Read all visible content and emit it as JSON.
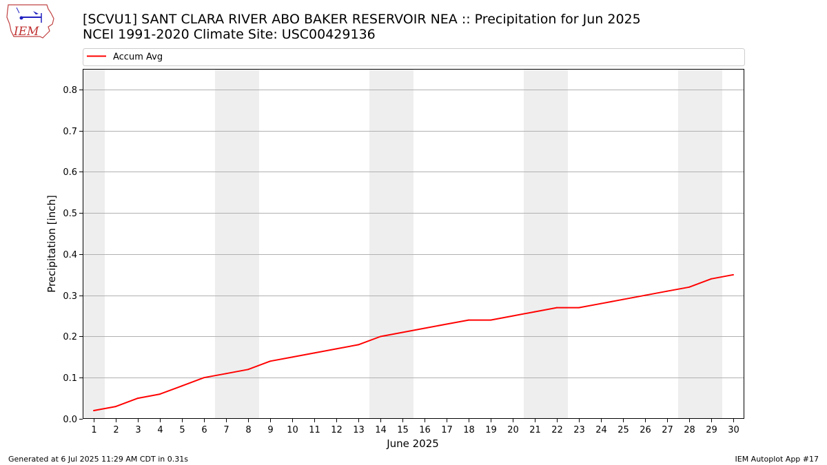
{
  "title_line1": "[SCVU1] SANT CLARA RIVER ABO BAKER RESERVOIR NEA :: Precipitation for Jun 2025",
  "title_line2": "NCEI 1991-2020 Climate Site: USC00429136",
  "logo_text": "IEM",
  "footer_left": "Generated at 6 Jul 2025 11:29 AM CDT in 0.31s",
  "footer_right": "IEM Autoplot App #17",
  "colors": {
    "line": "#ff0000",
    "weekend_band": "#eeeeee",
    "grid": "#b0b0b0"
  },
  "chart_data": {
    "type": "line",
    "xlabel": "June 2025",
    "ylabel": "Precipitation [inch]",
    "xlim": [
      0.5,
      30.5
    ],
    "ylim": [
      0,
      0.85
    ],
    "x_ticks": [
      1,
      2,
      3,
      4,
      5,
      6,
      7,
      8,
      9,
      10,
      11,
      12,
      13,
      14,
      15,
      16,
      17,
      18,
      19,
      20,
      21,
      22,
      23,
      24,
      25,
      26,
      27,
      28,
      29,
      30
    ],
    "y_ticks": [
      "0.0",
      "0.1",
      "0.2",
      "0.3",
      "0.4",
      "0.5",
      "0.6",
      "0.7",
      "0.8"
    ],
    "grid": "horizontal",
    "legend_placement": "top",
    "weekend_days": [
      1,
      7,
      8,
      14,
      15,
      21,
      22,
      28,
      29
    ],
    "series": [
      {
        "name": "Accum Avg",
        "x": [
          1,
          2,
          3,
          4,
          5,
          6,
          7,
          8,
          9,
          10,
          11,
          12,
          13,
          14,
          15,
          16,
          17,
          18,
          19,
          20,
          21,
          22,
          23,
          24,
          25,
          26,
          27,
          28,
          29,
          30
        ],
        "values": [
          0.02,
          0.03,
          0.05,
          0.06,
          0.08,
          0.1,
          0.11,
          0.12,
          0.14,
          0.15,
          0.16,
          0.17,
          0.18,
          0.2,
          0.21,
          0.22,
          0.23,
          0.24,
          0.24,
          0.25,
          0.26,
          0.27,
          0.27,
          0.28,
          0.29,
          0.3,
          0.31,
          0.32,
          0.34,
          0.35
        ]
      }
    ]
  }
}
